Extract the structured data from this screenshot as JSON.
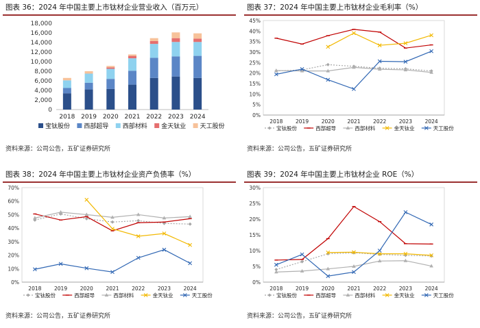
{
  "colors": {
    "bar_series": [
      "#2b4f8a",
      "#5b86c6",
      "#8fd2ef",
      "#e56f6f",
      "#f7c29a"
    ],
    "line_series": [
      "#a6a6a6",
      "#c00000",
      "#b0b0b0",
      "#f2b800",
      "#2f66b3"
    ]
  },
  "panels": [
    {
      "title": "图表 36：2024 年中国主要上市钛材企业营业收入（百万元）",
      "source": "资料来源：公司公告，五矿证券研究所"
    },
    {
      "title": "图表 37：2024 年中国主要上市钛材企业毛利率（%）",
      "source": "资料来源：公司公告，五矿证券研究所"
    },
    {
      "title": "图表 38：2024 年中国主要上市钛材企业资产负债率（%）",
      "source": "资料来源：公司公告，五矿证券研究所"
    },
    {
      "title": "图表 39：2024 年中国主要上市钛材企业 ROE（%）",
      "source": "资料来源：公司公告，五矿证券研究所"
    }
  ],
  "chart_data": [
    {
      "type": "bar",
      "stacked": true,
      "title": "图表 36：2024 年中国主要上市钛材企业营业收入（百万元）",
      "categories": [
        "2018",
        "2019",
        "2020",
        "2021",
        "2022",
        "2023",
        "2024"
      ],
      "ylim": [
        0,
        18000
      ],
      "yticks": [
        0,
        2000,
        4000,
        6000,
        8000,
        10000,
        12000,
        14000,
        16000,
        18000
      ],
      "ytick_labels": [
        "0",
        "2,000",
        "4,000",
        "6,000",
        "8,000",
        "10,000",
        "12,000",
        "14,000",
        "16,000",
        "18,000"
      ],
      "legend_position": "bottom",
      "grid": false,
      "series": [
        {
          "name": "宝钛股份",
          "values": [
            3400,
            4200,
            4300,
            5200,
            6600,
            6900,
            6600
          ]
        },
        {
          "name": "西部超导",
          "values": [
            1100,
            1400,
            2100,
            2900,
            4200,
            4200,
            4600
          ]
        },
        {
          "name": "西部材料",
          "values": [
            1600,
            1900,
            2100,
            2600,
            2900,
            3000,
            2900
          ]
        },
        {
          "name": "金天钛业",
          "values": [
            0,
            0,
            300,
            500,
            600,
            800,
            700
          ]
        },
        {
          "name": "天工股份",
          "values": [
            500,
            500,
            300,
            300,
            600,
            1200,
            1100
          ]
        }
      ]
    },
    {
      "type": "line",
      "title": "图表 37：2024 年中国主要上市钛材企业毛利率（%）",
      "categories": [
        "2018",
        "2019",
        "2020",
        "2021",
        "2022",
        "2023",
        "2024"
      ],
      "ylim": [
        0,
        45
      ],
      "yticks": [
        0,
        5,
        10,
        15,
        20,
        25,
        30,
        35,
        40,
        45
      ],
      "legend_position": "bottom",
      "grid": false,
      "series": [
        {
          "name": "宝钛股份",
          "values": [
            21.0,
            21.5,
            24.0,
            23.2,
            22.3,
            22.0,
            21.0
          ]
        },
        {
          "name": "西部超导",
          "values": [
            36.6,
            33.8,
            37.8,
            40.8,
            39.5,
            31.9,
            33.4
          ]
        },
        {
          "name": "西部材料",
          "values": [
            21.2,
            21.0,
            21.0,
            22.7,
            21.8,
            21.5,
            20.3
          ]
        },
        {
          "name": "金天钛业",
          "values": [
            null,
            null,
            32.5,
            39.0,
            33.2,
            34.2,
            38.0
          ]
        },
        {
          "name": "天工股份",
          "values": [
            19.4,
            21.9,
            16.8,
            12.4,
            25.6,
            25.4,
            30.4
          ]
        }
      ]
    },
    {
      "type": "line",
      "title": "图表 38：2024 年中国主要上市钛材企业资产负债率（%）",
      "categories": [
        "2018",
        "2019",
        "2020",
        "2021",
        "2022",
        "2023",
        "2024"
      ],
      "ylim": [
        0,
        70
      ],
      "yticks": [
        0,
        10,
        20,
        30,
        40,
        50,
        60,
        70
      ],
      "legend_position": "bottom",
      "grid": false,
      "series": [
        {
          "name": "宝钛股份",
          "values": [
            46.0,
            50.5,
            47.0,
            44.5,
            45.5,
            43.5,
            43.0
          ]
        },
        {
          "name": "西部超导",
          "values": [
            50.5,
            46.0,
            48.5,
            38.0,
            44.0,
            44.5,
            47.0
          ]
        },
        {
          "name": "西部材料",
          "values": [
            47.5,
            51.8,
            50.0,
            48.0,
            50.0,
            47.5,
            48.5
          ]
        },
        {
          "name": "金天钛业",
          "values": [
            null,
            null,
            61.0,
            39.5,
            34.0,
            36.0,
            27.5
          ]
        },
        {
          "name": "天工股份",
          "values": [
            9.5,
            13.5,
            10.3,
            7.5,
            18.0,
            24.0,
            14.0
          ]
        }
      ]
    },
    {
      "type": "line",
      "title": "图表 39：2024 年中国主要上市钛材企业 ROE（%）",
      "categories": [
        "2018",
        "2019",
        "2020",
        "2021",
        "2022",
        "2023",
        "2024"
      ],
      "ylim": [
        0,
        30
      ],
      "yticks": [
        0,
        5,
        10,
        15,
        20,
        25,
        30
      ],
      "legend_position": "bottom",
      "grid": false,
      "series": [
        {
          "name": "宝钛股份",
          "values": [
            4.0,
            6.5,
            9.0,
            9.3,
            8.8,
            8.5,
            8.3
          ]
        },
        {
          "name": "西部超导",
          "values": [
            7.0,
            7.2,
            13.8,
            24.0,
            19.2,
            12.2,
            12.1
          ]
        },
        {
          "name": "西部材料",
          "values": [
            3.2,
            3.5,
            4.2,
            5.0,
            6.7,
            6.8,
            5.1
          ]
        },
        {
          "name": "金天钛业",
          "values": [
            null,
            null,
            9.4,
            9.5,
            9.0,
            9.0,
            8.5
          ]
        },
        {
          "name": "天工股份",
          "values": [
            5.5,
            8.8,
            1.9,
            3.2,
            10.0,
            22.2,
            18.3
          ]
        }
      ]
    }
  ]
}
